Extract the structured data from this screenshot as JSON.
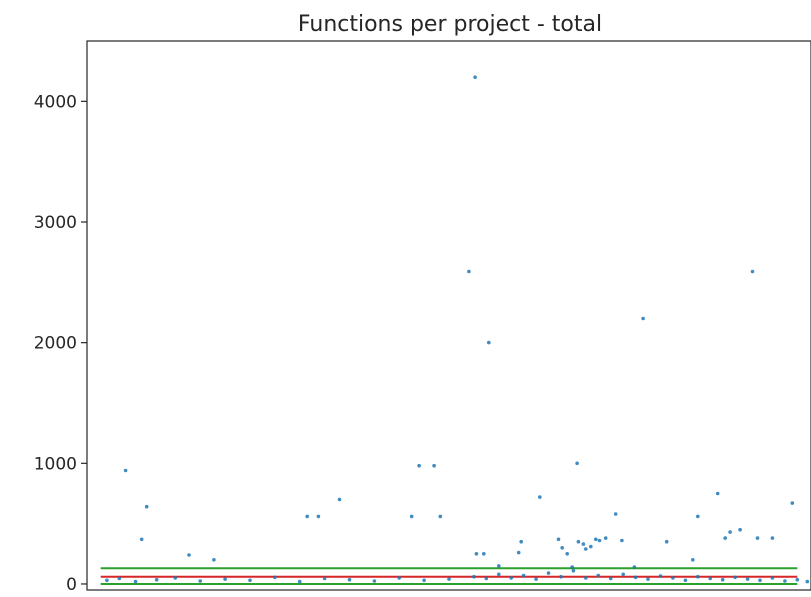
{
  "chart_data": {
    "type": "scatter",
    "title": "Functions per project - total",
    "xlabel": "",
    "ylabel": "",
    "xlim": [
      -11,
      571
    ],
    "ylim": [
      -50,
      4500
    ],
    "grid": false,
    "x_ticks_shown": false,
    "y_ticks": [
      0,
      1000,
      2000,
      3000,
      4000
    ],
    "y_tick_labels": [
      "0",
      "1000",
      "2000",
      "3000",
      "4000"
    ],
    "colors": {
      "points": "#1f77b4",
      "line_upper": "#2ca02c",
      "line_middle": "#d62728",
      "line_lower": "#2ca02c"
    },
    "reference_lines": [
      {
        "y": 130,
        "color": "#2ca02c"
      },
      {
        "y": 60,
        "color": "#d62728"
      },
      {
        "y": 0,
        "color": "#2ca02c"
      }
    ],
    "series": [
      {
        "points": [
          [
            20,
            940
          ],
          [
            33,
            370
          ],
          [
            37,
            640
          ],
          [
            71,
            240
          ],
          [
            91,
            200
          ],
          [
            166,
            560
          ],
          [
            175,
            560
          ],
          [
            192,
            700
          ],
          [
            250,
            560
          ],
          [
            256,
            980
          ],
          [
            268,
            980
          ],
          [
            273,
            560
          ],
          [
            296,
            2590
          ],
          [
            301,
            4200
          ],
          [
            302,
            250
          ],
          [
            308,
            250
          ],
          [
            312,
            2000
          ],
          [
            320,
            150
          ],
          [
            336,
            260
          ],
          [
            338,
            350
          ],
          [
            353,
            720
          ],
          [
            368,
            370
          ],
          [
            371,
            300
          ],
          [
            375,
            250
          ],
          [
            379,
            140
          ],
          [
            383,
            1000
          ],
          [
            384,
            350
          ],
          [
            388,
            330
          ],
          [
            390,
            290
          ],
          [
            394,
            310
          ],
          [
            398,
            370
          ],
          [
            401,
            360
          ],
          [
            406,
            380
          ],
          [
            414,
            580
          ],
          [
            419,
            360
          ],
          [
            429,
            140
          ],
          [
            436,
            2200
          ],
          [
            455,
            350
          ],
          [
            476,
            200
          ],
          [
            480,
            560
          ],
          [
            496,
            750
          ],
          [
            502,
            380
          ],
          [
            506,
            430
          ],
          [
            514,
            450
          ],
          [
            524,
            2590
          ],
          [
            528,
            380
          ],
          [
            540,
            380
          ],
          [
            556,
            670
          ],
          [
            5,
            30
          ],
          [
            15,
            45
          ],
          [
            28,
            20
          ],
          [
            45,
            35
          ],
          [
            60,
            50
          ],
          [
            80,
            25
          ],
          [
            100,
            40
          ],
          [
            120,
            30
          ],
          [
            140,
            55
          ],
          [
            160,
            20
          ],
          [
            180,
            45
          ],
          [
            200,
            35
          ],
          [
            220,
            25
          ],
          [
            240,
            50
          ],
          [
            260,
            30
          ],
          [
            280,
            40
          ],
          [
            300,
            60
          ],
          [
            310,
            45
          ],
          [
            320,
            80
          ],
          [
            330,
            50
          ],
          [
            340,
            70
          ],
          [
            350,
            40
          ],
          [
            360,
            90
          ],
          [
            370,
            60
          ],
          [
            380,
            110
          ],
          [
            390,
            50
          ],
          [
            400,
            70
          ],
          [
            410,
            45
          ],
          [
            420,
            80
          ],
          [
            430,
            55
          ],
          [
            440,
            40
          ],
          [
            450,
            65
          ],
          [
            460,
            50
          ],
          [
            470,
            30
          ],
          [
            480,
            60
          ],
          [
            490,
            45
          ],
          [
            500,
            35
          ],
          [
            510,
            55
          ],
          [
            520,
            40
          ],
          [
            530,
            30
          ],
          [
            540,
            50
          ],
          [
            550,
            25
          ],
          [
            560,
            35
          ],
          [
            568,
            20
          ]
        ]
      }
    ]
  }
}
